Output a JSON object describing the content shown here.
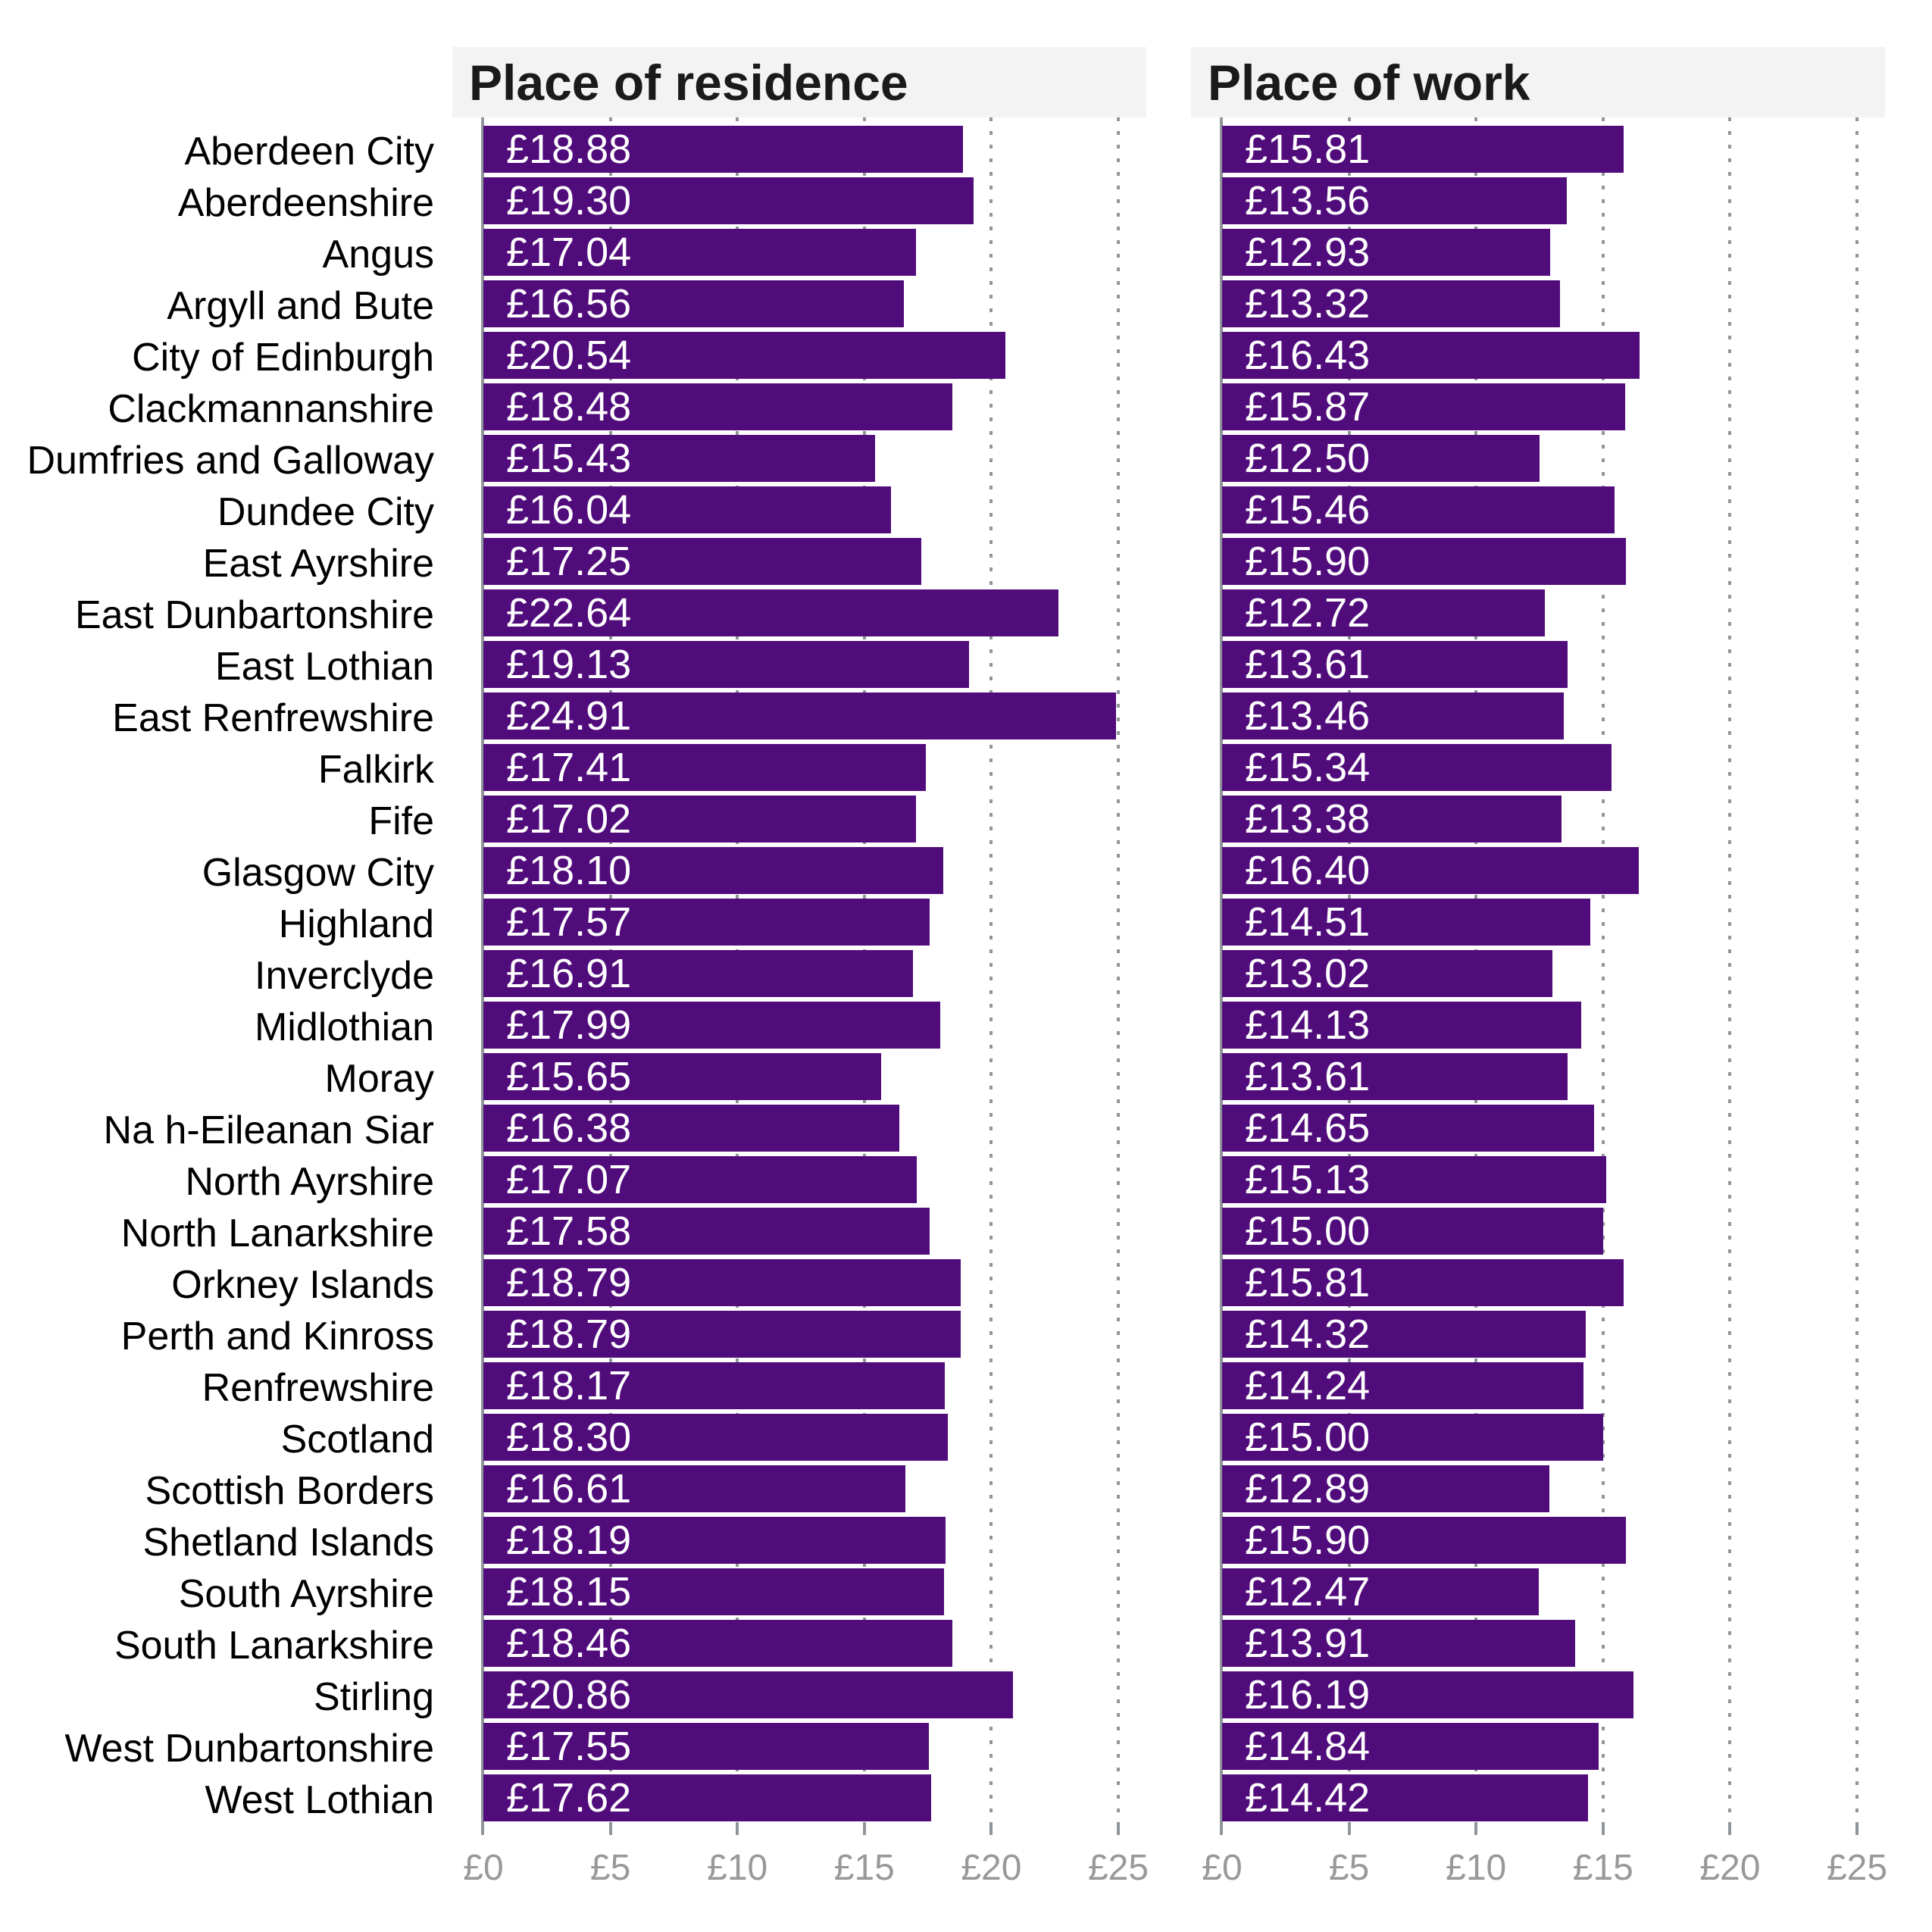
{
  "panels": [
    {
      "header": "Place of residence"
    },
    {
      "header": "Place of work"
    }
  ],
  "chart_data": {
    "type": "bar",
    "orientation": "horizontal",
    "title": "",
    "xlabel": "",
    "ylabel": "",
    "xlim": [
      0,
      25
    ],
    "x_tick_values": [
      0,
      5,
      10,
      15,
      20,
      25
    ],
    "x_tick_labels": [
      "£0",
      "£5",
      "£10",
      "£15",
      "£20",
      "£25"
    ],
    "value_prefix": "£",
    "grid": true,
    "bar_color": "#510c7c",
    "header_strip_color": "#f3f3f3",
    "grid_color": "#8f959a",
    "tick_label_color": "#97999b",
    "categories": [
      "Aberdeen City",
      "Aberdeenshire",
      "Angus",
      "Argyll and Bute",
      "City of Edinburgh",
      "Clackmannanshire",
      "Dumfries and Galloway",
      "Dundee City",
      "East Ayrshire",
      "East Dunbartonshire",
      "East Lothian",
      "East Renfrewshire",
      "Falkirk",
      "Fife",
      "Glasgow City",
      "Highland",
      "Inverclyde",
      "Midlothian",
      "Moray",
      "Na h-Eileanan Siar",
      "North Ayrshire",
      "North Lanarkshire",
      "Orkney Islands",
      "Perth and Kinross",
      "Renfrewshire",
      "Scotland",
      "Scottish Borders",
      "Shetland Islands",
      "South Ayrshire",
      "South Lanarkshire",
      "Stirling",
      "West Dunbartonshire",
      "West Lothian"
    ],
    "series": [
      {
        "name": "Place of residence",
        "values": [
          18.88,
          19.3,
          17.04,
          16.56,
          20.54,
          18.48,
          15.43,
          16.04,
          17.25,
          22.64,
          19.13,
          24.91,
          17.41,
          17.02,
          18.1,
          17.57,
          16.91,
          17.99,
          15.65,
          16.38,
          17.07,
          17.58,
          18.79,
          18.79,
          18.17,
          18.3,
          16.61,
          18.19,
          18.15,
          18.46,
          20.86,
          17.55,
          17.62
        ]
      },
      {
        "name": "Place of work",
        "values": [
          15.81,
          13.56,
          12.93,
          13.32,
          16.43,
          15.87,
          12.5,
          15.46,
          15.9,
          12.72,
          13.61,
          13.46,
          15.34,
          13.38,
          16.4,
          14.51,
          13.02,
          14.13,
          13.61,
          14.65,
          15.13,
          15.0,
          15.81,
          14.32,
          14.24,
          15.0,
          12.89,
          15.9,
          12.47,
          13.91,
          16.19,
          14.84,
          14.42
        ]
      }
    ]
  }
}
